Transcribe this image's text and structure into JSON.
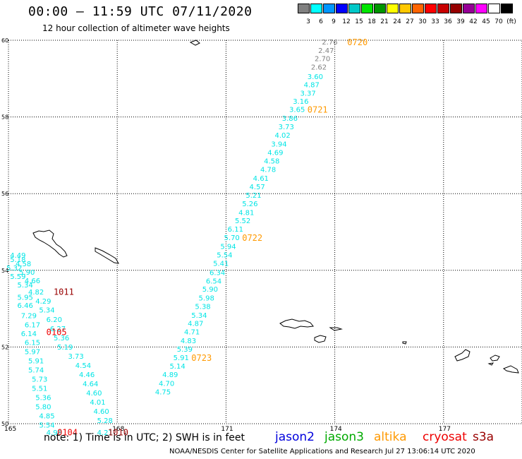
{
  "header": {
    "title": "00:00 – 11:59 UTC 07/11/2020",
    "subtitle": "12 hour collection of altimeter wave heights"
  },
  "legend": {
    "colors": [
      "#808080",
      "#00ffff",
      "#0096ff",
      "#0000ff",
      "#00c8c8",
      "#00e600",
      "#009600",
      "#ffff00",
      "#ffc800",
      "#ff6400",
      "#ff0000",
      "#c80000",
      "#960000",
      "#960096",
      "#ff00ff",
      "#ffffff",
      "#000000"
    ],
    "labels": [
      "3",
      "6",
      "9",
      "12",
      "15",
      "18",
      "21",
      "24",
      "27",
      "30",
      "33",
      "36",
      "39",
      "42",
      "45",
      "70",
      "(ft)"
    ]
  },
  "map": {
    "lon_ticks": [
      "165",
      "168",
      "171",
      "174",
      "177"
    ],
    "lat_ticks": [
      "50",
      "52",
      "54",
      "56",
      "58",
      "60"
    ]
  },
  "tracks": [
    {
      "color": "#808080",
      "points": [
        [
          173.8,
          59.96,
          "2.76"
        ],
        [
          173.7,
          59.74,
          "2.47"
        ],
        [
          173.6,
          59.53,
          "2.70"
        ],
        [
          173.5,
          59.31,
          "2.62"
        ]
      ]
    },
    {
      "color": "#00e5e5",
      "points": [
        [
          173.4,
          59.06,
          "3.60"
        ],
        [
          173.3,
          58.85,
          "4.87"
        ],
        [
          173.2,
          58.63,
          "3.37"
        ],
        [
          173.0,
          58.42,
          "3.16"
        ],
        [
          172.9,
          58.2,
          "3.65"
        ],
        [
          172.7,
          57.97,
          "3.86"
        ],
        [
          172.6,
          57.75,
          "3.73"
        ],
        [
          172.5,
          57.53,
          "4.02"
        ],
        [
          172.4,
          57.3,
          "3.94"
        ],
        [
          172.3,
          57.08,
          "4.69"
        ],
        [
          172.2,
          56.86,
          "4.58"
        ],
        [
          172.1,
          56.64,
          "4.78"
        ],
        [
          171.9,
          56.41,
          "4.61"
        ],
        [
          171.8,
          56.19,
          "4.57"
        ],
        [
          171.7,
          55.97,
          "5.21"
        ],
        [
          171.6,
          55.75,
          "5.26"
        ],
        [
          171.5,
          55.52,
          "4.81"
        ],
        [
          171.4,
          55.3,
          "5.52"
        ],
        [
          171.2,
          55.08,
          "6.11"
        ],
        [
          171.1,
          54.86,
          "5.70"
        ],
        [
          171.0,
          54.63,
          "5.94"
        ],
        [
          170.9,
          54.41,
          "5.54"
        ],
        [
          170.8,
          54.19,
          "5.41"
        ],
        [
          170.7,
          53.95,
          "6.34"
        ],
        [
          170.6,
          53.73,
          "6.54"
        ],
        [
          170.5,
          53.52,
          "5.90"
        ],
        [
          170.4,
          53.29,
          "5.98"
        ],
        [
          170.3,
          53.07,
          "5.38"
        ],
        [
          170.2,
          52.84,
          "5.34"
        ],
        [
          170.1,
          52.62,
          "4.87"
        ],
        [
          170.0,
          52.4,
          "4.71"
        ],
        [
          169.9,
          52.17,
          "4.83"
        ],
        [
          169.8,
          51.95,
          "5.39"
        ],
        [
          169.7,
          51.73,
          "5.91"
        ],
        [
          169.6,
          51.51,
          "5.14"
        ],
        [
          169.4,
          51.29,
          "4.89"
        ],
        [
          169.3,
          51.06,
          "4.70"
        ],
        [
          169.2,
          50.84,
          "4.75"
        ]
      ]
    },
    {
      "color": "#00e5e5",
      "points": [
        [
          165.2,
          54.4,
          "4.49"
        ],
        [
          165.2,
          54.29,
          "5.18"
        ],
        [
          165.35,
          54.18,
          "4.58"
        ],
        [
          165.1,
          54.07,
          "5.32"
        ],
        [
          165.45,
          53.96,
          "5.90"
        ],
        [
          165.2,
          53.85,
          "5.59"
        ],
        [
          165.6,
          53.74,
          "4.66"
        ],
        [
          165.4,
          53.63,
          "5.34"
        ],
        [
          165.7,
          53.44,
          "4.82"
        ],
        [
          165.4,
          53.31,
          "5.95"
        ],
        [
          165.9,
          53.2,
          "4.29"
        ],
        [
          165.4,
          53.09,
          "6.46"
        ],
        [
          166.0,
          52.97,
          "5.34"
        ],
        [
          165.5,
          52.83,
          "7.29"
        ],
        [
          166.2,
          52.73,
          "6.20"
        ],
        [
          165.6,
          52.59,
          "6.17"
        ],
        [
          166.3,
          52.49,
          "6.27"
        ],
        [
          165.5,
          52.36,
          "6.14"
        ],
        [
          166.4,
          52.25,
          "5.36"
        ],
        [
          165.6,
          52.13,
          "6.15"
        ],
        [
          166.5,
          52.01,
          "5.19"
        ],
        [
          165.6,
          51.89,
          "5.97"
        ],
        [
          166.8,
          51.77,
          "3.73"
        ],
        [
          165.7,
          51.65,
          "5.91"
        ],
        [
          167.0,
          51.53,
          "4.54"
        ],
        [
          165.7,
          51.41,
          "5.74"
        ],
        [
          167.1,
          51.29,
          "4.46"
        ],
        [
          165.8,
          51.17,
          "5.73"
        ],
        [
          167.2,
          51.05,
          "4.64"
        ],
        [
          165.8,
          50.93,
          "5.51"
        ],
        [
          167.3,
          50.81,
          "4.60"
        ],
        [
          165.9,
          50.69,
          "5.36"
        ],
        [
          167.4,
          50.57,
          "4.01"
        ],
        [
          165.9,
          50.45,
          "5.80"
        ],
        [
          167.5,
          50.33,
          "4.60"
        ],
        [
          166.0,
          50.21,
          "4.85"
        ],
        [
          167.6,
          50.09,
          "5.28"
        ],
        [
          166.0,
          49.97,
          "5.54"
        ],
        [
          166.2,
          49.78,
          "4.99"
        ],
        [
          167.6,
          49.78,
          "4.21"
        ]
      ]
    }
  ],
  "time_labels": [
    {
      "text": "0720",
      "lon": 174.5,
      "lat": 59.96,
      "color": "#ff9900"
    },
    {
      "text": "0721",
      "lon": 173.4,
      "lat": 58.2,
      "color": "#ff9900"
    },
    {
      "text": "0722",
      "lon": 171.6,
      "lat": 54.86,
      "color": "#ff9900"
    },
    {
      "text": "0723",
      "lon": 170.2,
      "lat": 51.73,
      "color": "#ff9900"
    },
    {
      "text": "1011",
      "lon": 166.4,
      "lat": 53.45,
      "color": "#990000"
    },
    {
      "text": "0105",
      "lon": 166.2,
      "lat": 52.4,
      "color": "#ee0000"
    },
    {
      "text": "0104",
      "lon": 166.5,
      "lat": 49.79,
      "color": "#ee0000"
    },
    {
      "text": "1010",
      "lon": 167.9,
      "lat": 49.79,
      "color": "#990000"
    }
  ],
  "footer": {
    "note": "note:  1) Time is in UTC;  2) SWH is in feet",
    "credit": "NOAA/NESDIS Center for Satellite Applications and Research    Jul 27 13:06:14 UTC 2020"
  },
  "satellites": [
    {
      "name": "jason2",
      "color": "#0000dd"
    },
    {
      "name": "jason3",
      "color": "#00aa00"
    },
    {
      "name": "altika",
      "color": "#ff9900"
    },
    {
      "name": "cryosat",
      "color": "#ee0000"
    },
    {
      "name": "s3a",
      "color": "#990000"
    }
  ]
}
